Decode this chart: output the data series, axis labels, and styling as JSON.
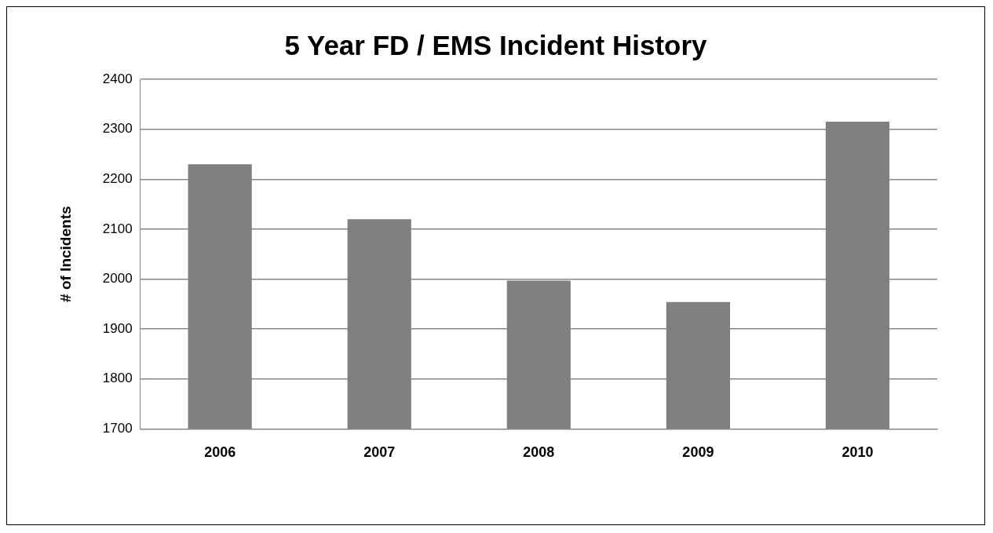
{
  "chart_data": {
    "type": "bar",
    "title": "5 Year FD / EMS Incident History",
    "ylabel": "# of Incidents",
    "categories": [
      "2006",
      "2007",
      "2008",
      "2009",
      "2010"
    ],
    "values": [
      2230,
      2120,
      1997,
      1954,
      2315
    ],
    "color": "#808080",
    "ylim": [
      1700,
      2400
    ],
    "yticks": [
      1700,
      1800,
      1900,
      2000,
      2100,
      2200,
      2300,
      2400
    ],
    "grid": "y",
    "legend": false
  }
}
